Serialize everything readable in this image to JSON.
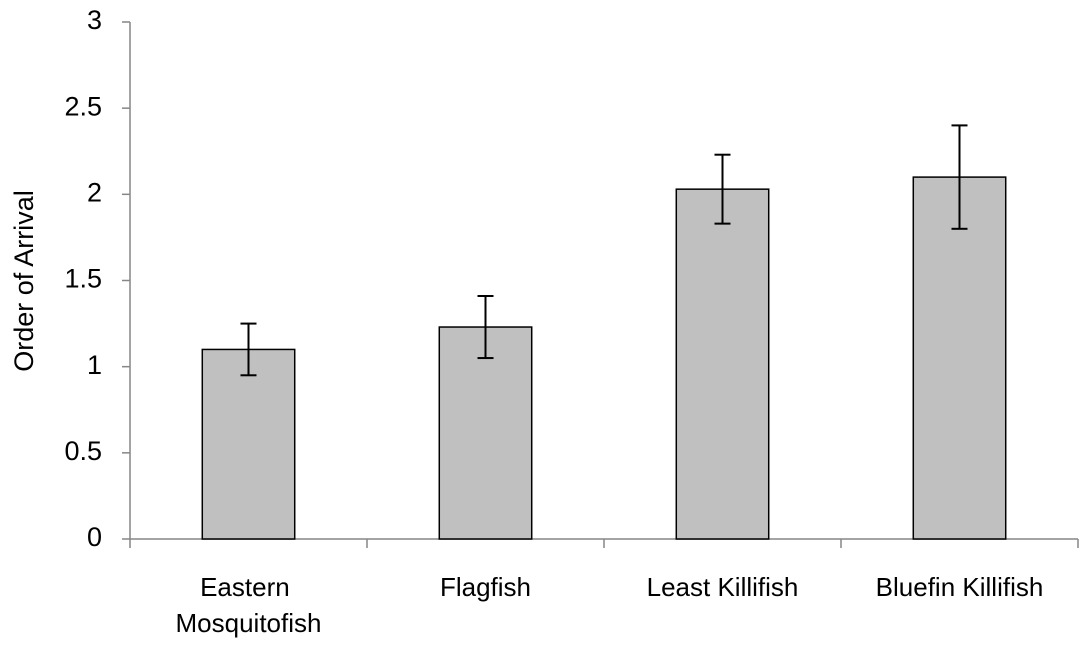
{
  "chart_data": {
    "type": "bar",
    "y_label": "Order of Arrival",
    "categories": [
      "Eastern Mosquitofish",
      "Flagfish",
      "Least Killifish",
      "Bluefin Killifish"
    ],
    "values": [
      1.1,
      1.23,
      2.03,
      2.1
    ],
    "errors": [
      0.15,
      0.18,
      0.2,
      0.3
    ],
    "color": "#c0c0c0",
    "ylim": [
      0,
      3
    ],
    "yticks": [
      0,
      0.5,
      1,
      1.5,
      2,
      2.5,
      3
    ],
    "grid": false
  }
}
